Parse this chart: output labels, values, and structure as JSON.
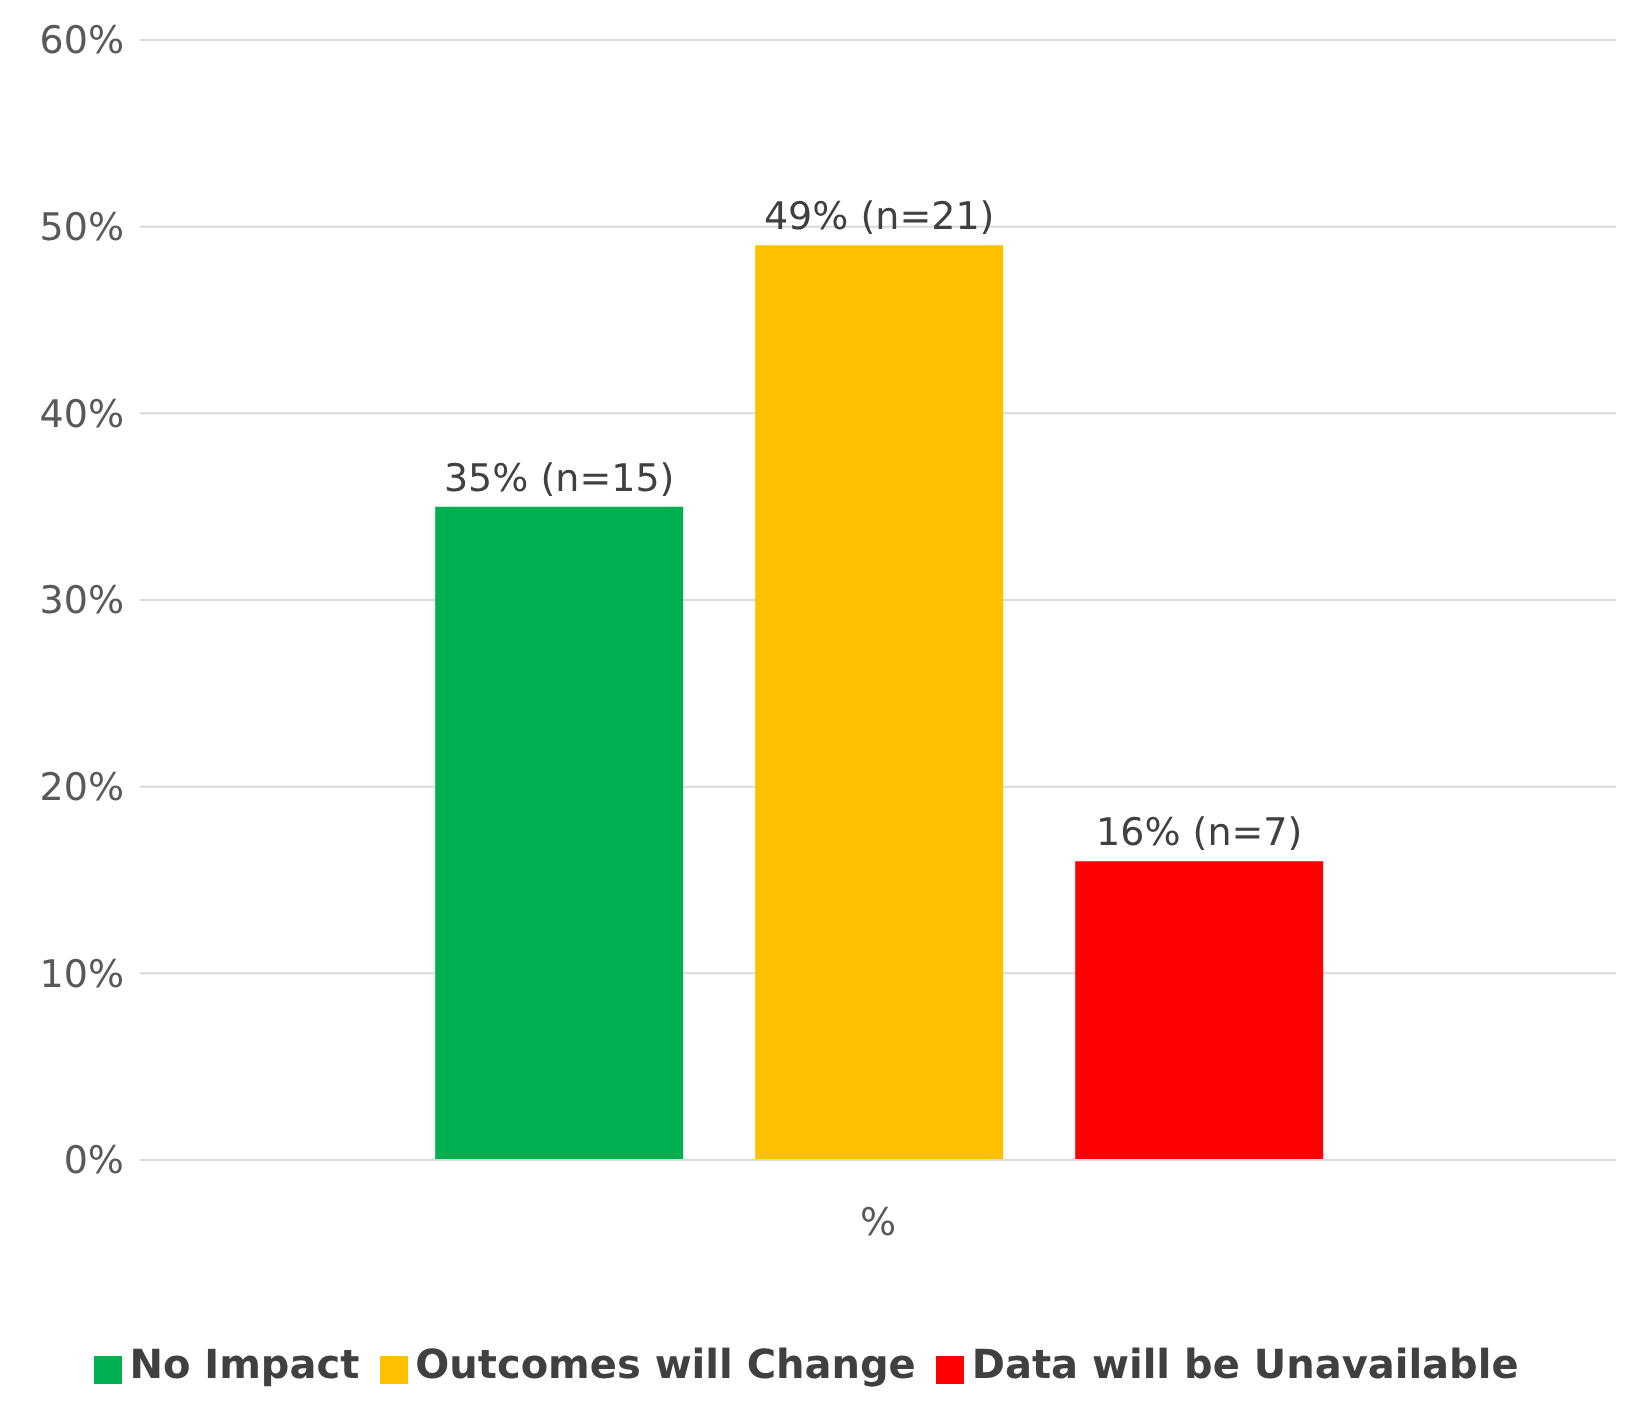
{
  "chart_data": {
    "type": "bar",
    "categories": [
      "%"
    ],
    "xlabel": null,
    "series": [
      {
        "name": "No Impact",
        "color": "#00b050",
        "values": [
          35
        ],
        "value_labels": [
          "35% (n=15)"
        ]
      },
      {
        "name": "Outcomes will Change",
        "color": "#ffc000",
        "values": [
          49
        ],
        "value_labels": [
          "49% (n=21)"
        ]
      },
      {
        "name": "Data will be Unavailable",
        "color": "#ff0000",
        "values": [
          16
        ],
        "value_labels": [
          "16% (n=7)"
        ]
      }
    ],
    "ylim": [
      0,
      60
    ],
    "yticks": [
      {
        "value": 0,
        "label": "0%"
      },
      {
        "value": 10,
        "label": "10%"
      },
      {
        "value": 20,
        "label": "20%"
      },
      {
        "value": 30,
        "label": "30%"
      },
      {
        "value": 40,
        "label": "40%"
      },
      {
        "value": 50,
        "label": "50%"
      },
      {
        "value": 60,
        "label": "60%"
      }
    ],
    "grid": "y",
    "legend": "bottom"
  }
}
